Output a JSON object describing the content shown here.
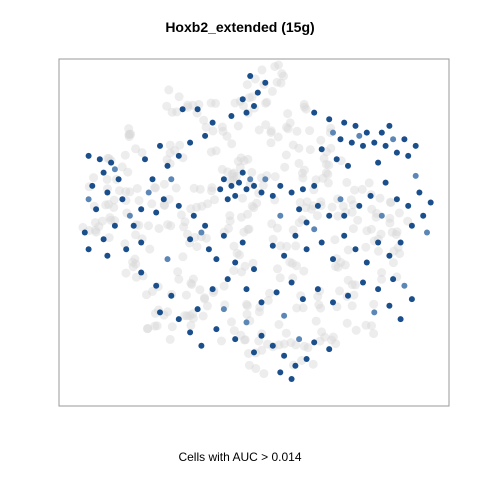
{
  "chart_data": {
    "type": "scatter",
    "title": "Hoxb2_extended (15g)",
    "xlabel": "Cells with AUC > 0.014",
    "ylabel": "",
    "grid": false,
    "legend": "none",
    "colors": {
      "background_cells": "#d6d6d6",
      "auc_high_cells": "#1a4f8b",
      "auc_mid_cells": "#5b86b5",
      "frame": "#999999"
    },
    "series": [
      {
        "role": "cells below AUC threshold",
        "color": "#d6d6d6",
        "points": [
          [
            0.5,
            0.58
          ],
          [
            0.52,
            0.64
          ],
          [
            0.47,
            0.7
          ],
          [
            0.42,
            0.78
          ],
          [
            0.55,
            0.8
          ],
          [
            0.6,
            0.72
          ],
          [
            0.38,
            0.62
          ],
          [
            0.3,
            0.55
          ],
          [
            0.22,
            0.48
          ],
          [
            0.35,
            0.45
          ],
          [
            0.48,
            0.42
          ],
          [
            0.6,
            0.4
          ],
          [
            0.72,
            0.44
          ],
          [
            0.8,
            0.5
          ],
          [
            0.85,
            0.56
          ],
          [
            0.78,
            0.62
          ],
          [
            0.7,
            0.68
          ],
          [
            0.65,
            0.55
          ],
          [
            0.58,
            0.5
          ],
          [
            0.45,
            0.52
          ],
          [
            0.33,
            0.35
          ],
          [
            0.25,
            0.3
          ],
          [
            0.18,
            0.38
          ],
          [
            0.12,
            0.5
          ],
          [
            0.1,
            0.62
          ],
          [
            0.15,
            0.7
          ],
          [
            0.2,
            0.78
          ],
          [
            0.28,
            0.74
          ],
          [
            0.4,
            0.3
          ],
          [
            0.52,
            0.28
          ],
          [
            0.64,
            0.3
          ],
          [
            0.76,
            0.32
          ],
          [
            0.86,
            0.4
          ],
          [
            0.9,
            0.5
          ],
          [
            0.55,
            0.18
          ],
          [
            0.62,
            0.14
          ],
          [
            0.5,
            0.12
          ],
          [
            0.45,
            0.2
          ],
          [
            0.35,
            0.22
          ],
          [
            0.25,
            0.22
          ],
          [
            0.7,
            0.2
          ],
          [
            0.78,
            0.24
          ],
          [
            0.68,
            0.78
          ],
          [
            0.62,
            0.84
          ],
          [
            0.48,
            0.86
          ],
          [
            0.36,
            0.85
          ],
          [
            0.3,
            0.9
          ],
          [
            0.52,
            0.93
          ],
          [
            0.55,
            0.97
          ],
          [
            0.42,
            0.66
          ],
          [
            0.66,
            0.62
          ],
          [
            0.74,
            0.56
          ],
          [
            0.18,
            0.6
          ],
          [
            0.08,
            0.55
          ],
          [
            0.26,
            0.62
          ]
        ]
      },
      {
        "role": "cells with AUC > 0.014",
        "color": "#1a4f8b",
        "points": [
          [
            0.73,
            0.78
          ],
          [
            0.76,
            0.77
          ],
          [
            0.79,
            0.76
          ],
          [
            0.82,
            0.77
          ],
          [
            0.85,
            0.76
          ],
          [
            0.88,
            0.74
          ],
          [
            0.91,
            0.73
          ],
          [
            0.8,
            0.8
          ],
          [
            0.77,
            0.82
          ],
          [
            0.74,
            0.83
          ],
          [
            0.84,
            0.8
          ],
          [
            0.86,
            0.82
          ],
          [
            0.7,
            0.84
          ],
          [
            0.66,
            0.86
          ],
          [
            0.68,
            0.75
          ],
          [
            0.72,
            0.72
          ],
          [
            0.9,
            0.78
          ],
          [
            0.93,
            0.76
          ],
          [
            0.75,
            0.7
          ],
          [
            0.83,
            0.71
          ],
          [
            0.42,
            0.66
          ],
          [
            0.44,
            0.64
          ],
          [
            0.46,
            0.65
          ],
          [
            0.48,
            0.63
          ],
          [
            0.5,
            0.64
          ],
          [
            0.52,
            0.62
          ],
          [
            0.45,
            0.61
          ],
          [
            0.43,
            0.6
          ],
          [
            0.47,
            0.68
          ],
          [
            0.41,
            0.63
          ],
          [
            0.55,
            0.61
          ],
          [
            0.57,
            0.64
          ],
          [
            0.6,
            0.62
          ],
          [
            0.63,
            0.63
          ],
          [
            0.66,
            0.64
          ],
          [
            0.06,
            0.73
          ],
          [
            0.09,
            0.72
          ],
          [
            0.12,
            0.71
          ],
          [
            0.1,
            0.68
          ],
          [
            0.14,
            0.66
          ],
          [
            0.07,
            0.64
          ],
          [
            0.11,
            0.62
          ],
          [
            0.15,
            0.6
          ],
          [
            0.08,
            0.57
          ],
          [
            0.05,
            0.5
          ],
          [
            0.1,
            0.48
          ],
          [
            0.13,
            0.52
          ],
          [
            0.06,
            0.45
          ],
          [
            0.11,
            0.43
          ],
          [
            0.16,
            0.45
          ],
          [
            0.2,
            0.47
          ],
          [
            0.18,
            0.52
          ],
          [
            0.2,
            0.57
          ],
          [
            0.24,
            0.56
          ],
          [
            0.26,
            0.6
          ],
          [
            0.23,
            0.66
          ],
          [
            0.27,
            0.7
          ],
          [
            0.21,
            0.72
          ],
          [
            0.25,
            0.76
          ],
          [
            0.3,
            0.73
          ],
          [
            0.33,
            0.77
          ],
          [
            0.37,
            0.79
          ],
          [
            0.39,
            0.83
          ],
          [
            0.35,
            0.87
          ],
          [
            0.31,
            0.87
          ],
          [
            0.44,
            0.85
          ],
          [
            0.48,
            0.86
          ],
          [
            0.5,
            0.88
          ],
          [
            0.47,
            0.9
          ],
          [
            0.53,
            0.95
          ],
          [
            0.49,
            0.97
          ],
          [
            0.51,
            0.92
          ],
          [
            0.3,
            0.58
          ],
          [
            0.34,
            0.55
          ],
          [
            0.37,
            0.52
          ],
          [
            0.33,
            0.48
          ],
          [
            0.38,
            0.45
          ],
          [
            0.42,
            0.49
          ],
          [
            0.47,
            0.47
          ],
          [
            0.4,
            0.42
          ],
          [
            0.45,
            0.41
          ],
          [
            0.5,
            0.39
          ],
          [
            0.55,
            0.46
          ],
          [
            0.58,
            0.43
          ],
          [
            0.61,
            0.49
          ],
          [
            0.64,
            0.45
          ],
          [
            0.68,
            0.47
          ],
          [
            0.71,
            0.42
          ],
          [
            0.74,
            0.49
          ],
          [
            0.77,
            0.45
          ],
          [
            0.8,
            0.41
          ],
          [
            0.83,
            0.47
          ],
          [
            0.86,
            0.43
          ],
          [
            0.89,
            0.47
          ],
          [
            0.92,
            0.52
          ],
          [
            0.95,
            0.55
          ],
          [
            0.97,
            0.59
          ],
          [
            0.94,
            0.62
          ],
          [
            0.91,
            0.58
          ],
          [
            0.88,
            0.6
          ],
          [
            0.85,
            0.65
          ],
          [
            0.81,
            0.61
          ],
          [
            0.78,
            0.58
          ],
          [
            0.74,
            0.55
          ],
          [
            0.7,
            0.55
          ],
          [
            0.67,
            0.58
          ],
          [
            0.64,
            0.53
          ],
          [
            0.62,
            0.57
          ],
          [
            0.2,
            0.38
          ],
          [
            0.24,
            0.34
          ],
          [
            0.28,
            0.31
          ],
          [
            0.25,
            0.26
          ],
          [
            0.3,
            0.24
          ],
          [
            0.35,
            0.27
          ],
          [
            0.39,
            0.33
          ],
          [
            0.43,
            0.36
          ],
          [
            0.48,
            0.33
          ],
          [
            0.52,
            0.29
          ],
          [
            0.56,
            0.32
          ],
          [
            0.6,
            0.35
          ],
          [
            0.63,
            0.3
          ],
          [
            0.67,
            0.33
          ],
          [
            0.71,
            0.29
          ],
          [
            0.75,
            0.31
          ],
          [
            0.79,
            0.35
          ],
          [
            0.83,
            0.33
          ],
          [
            0.86,
            0.28
          ],
          [
            0.89,
            0.24
          ],
          [
            0.92,
            0.3
          ],
          [
            0.87,
            0.36
          ],
          [
            0.55,
            0.16
          ],
          [
            0.58,
            0.13
          ],
          [
            0.61,
            0.1
          ],
          [
            0.64,
            0.12
          ],
          [
            0.57,
            0.08
          ],
          [
            0.6,
            0.06
          ],
          [
            0.52,
            0.19
          ],
          [
            0.66,
            0.17
          ],
          [
            0.7,
            0.15
          ],
          [
            0.5,
            0.14
          ],
          [
            0.45,
            0.18
          ],
          [
            0.4,
            0.21
          ],
          [
            0.36,
            0.16
          ],
          [
            0.33,
            0.2
          ]
        ]
      },
      {
        "role": "cells with AUC > 0.014 (lighter shade)",
        "color": "#5b86b5",
        "points": [
          [
            0.78,
            0.79
          ],
          [
            0.87,
            0.78
          ],
          [
            0.71,
            0.8
          ],
          [
            0.49,
            0.66
          ],
          [
            0.53,
            0.66
          ],
          [
            0.13,
            0.69
          ],
          [
            0.22,
            0.62
          ],
          [
            0.28,
            0.66
          ],
          [
            0.36,
            0.5
          ],
          [
            0.66,
            0.51
          ],
          [
            0.84,
            0.55
          ],
          [
            0.96,
            0.5
          ],
          [
            0.27,
            0.42
          ],
          [
            0.42,
            0.27
          ],
          [
            0.58,
            0.25
          ],
          [
            0.82,
            0.26
          ],
          [
            0.9,
            0.34
          ],
          [
            0.62,
            0.18
          ],
          [
            0.48,
            0.23
          ],
          [
            0.17,
            0.55
          ],
          [
            0.06,
            0.6
          ],
          [
            0.93,
            0.67
          ],
          [
            0.73,
            0.6
          ],
          [
            0.57,
            0.55
          ]
        ]
      }
    ]
  }
}
